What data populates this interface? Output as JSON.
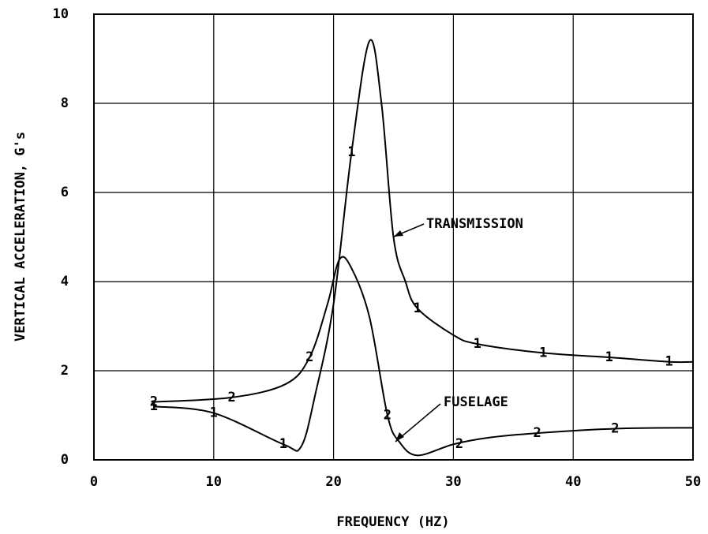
{
  "chart_data": {
    "type": "line",
    "xlabel": "FREQUENCY (HZ)",
    "ylabel": "VERTICAL ACCELERATION, G's",
    "xlim": [
      0,
      50
    ],
    "xticks": [
      0,
      10,
      20,
      30,
      40,
      50
    ],
    "ylim": [
      0,
      10
    ],
    "yticks": [
      0,
      2,
      4,
      6,
      8,
      10
    ],
    "grid": true,
    "annotations": [
      "TRANSMISSION",
      "FUSELAGE"
    ],
    "series": [
      {
        "name": "1",
        "color": "#000000",
        "x": [
          5,
          10,
          15.8,
          17.3,
          18.5,
          20,
          21.5,
          23,
          24,
          25,
          26,
          27,
          30,
          32,
          37.5,
          43,
          48,
          50
        ],
        "values": [
          1.2,
          1.05,
          0.35,
          0.3,
          1.5,
          3.5,
          6.9,
          9.4,
          8,
          5,
          4,
          3.4,
          2.8,
          2.6,
          2.4,
          2.3,
          2.2,
          2.2
        ],
        "marker": "1",
        "marker_x": [
          5,
          10,
          15.8,
          21.5,
          27,
          32,
          37.5,
          43,
          48
        ],
        "marker_values": [
          1.2,
          1.05,
          0.35,
          6.9,
          3.4,
          2.6,
          2.4,
          2.3,
          2.2
        ]
      },
      {
        "name": "2",
        "color": "#000000",
        "x": [
          5,
          11.5,
          16,
          18,
          19.5,
          20.5,
          21.5,
          23,
          24.5,
          25.5,
          27,
          30,
          33,
          37,
          43.5,
          50
        ],
        "values": [
          1.3,
          1.4,
          1.7,
          2.3,
          3.5,
          4.5,
          4.3,
          3.2,
          1.0,
          0.4,
          0.1,
          0.35,
          0.5,
          0.6,
          0.7,
          0.72
        ],
        "marker": "2",
        "marker_x": [
          5,
          11.5,
          18,
          24.5,
          30.5,
          37,
          43.5
        ],
        "marker_values": [
          1.3,
          1.4,
          2.3,
          1.0,
          0.35,
          0.6,
          0.7
        ]
      }
    ]
  }
}
